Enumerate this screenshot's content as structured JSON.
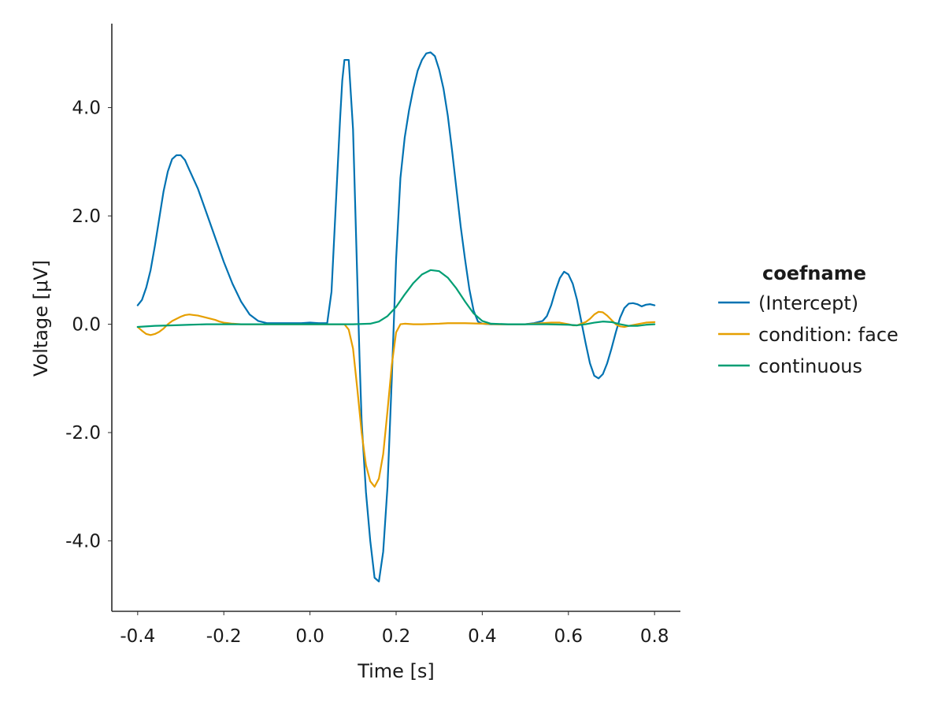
{
  "chart_data": {
    "type": "line",
    "xlabel": "Time [s]",
    "ylabel": "Voltage [μV]",
    "xlim": [
      -0.46,
      0.86
    ],
    "ylim": [
      -5.3,
      5.55
    ],
    "xticks": [
      -0.4,
      -0.2,
      0.0,
      0.2,
      0.4,
      0.6,
      0.8
    ],
    "xtick_labels": [
      "-0.4",
      "-0.2",
      "0.0",
      "0.2",
      "0.4",
      "0.6",
      "0.8"
    ],
    "yticks": [
      -4.0,
      -2.0,
      0.0,
      2.0,
      4.0
    ],
    "ytick_labels": [
      "-4.0",
      "-2.0",
      "0.0",
      "2.0",
      "4.0"
    ],
    "grid": false,
    "legend": {
      "title": "coefname",
      "placement": "right"
    },
    "series": [
      {
        "name": "(Intercept)",
        "color": "#0072B2",
        "points": [
          [
            -0.4,
            0.35
          ],
          [
            -0.39,
            0.45
          ],
          [
            -0.38,
            0.68
          ],
          [
            -0.37,
            1.0
          ],
          [
            -0.36,
            1.45
          ],
          [
            -0.35,
            1.95
          ],
          [
            -0.34,
            2.45
          ],
          [
            -0.33,
            2.82
          ],
          [
            -0.32,
            3.05
          ],
          [
            -0.31,
            3.12
          ],
          [
            -0.3,
            3.12
          ],
          [
            -0.29,
            3.03
          ],
          [
            -0.28,
            2.85
          ],
          [
            -0.26,
            2.5
          ],
          [
            -0.24,
            2.05
          ],
          [
            -0.22,
            1.6
          ],
          [
            -0.2,
            1.15
          ],
          [
            -0.18,
            0.75
          ],
          [
            -0.16,
            0.42
          ],
          [
            -0.14,
            0.18
          ],
          [
            -0.12,
            0.06
          ],
          [
            -0.1,
            0.02
          ],
          [
            -0.06,
            0.02
          ],
          [
            -0.02,
            0.02
          ],
          [
            0.0,
            0.03
          ],
          [
            0.02,
            0.02
          ],
          [
            0.04,
            0.02
          ],
          [
            0.05,
            0.6
          ],
          [
            0.06,
            2.2
          ],
          [
            0.07,
            3.8
          ],
          [
            0.075,
            4.5
          ],
          [
            0.08,
            4.88
          ],
          [
            0.09,
            4.88
          ],
          [
            0.1,
            3.6
          ],
          [
            0.105,
            2.2
          ],
          [
            0.11,
            0.8
          ],
          [
            0.115,
            -0.6
          ],
          [
            0.12,
            -1.8
          ],
          [
            0.13,
            -3.1
          ],
          [
            0.14,
            -4.0
          ],
          [
            0.15,
            -4.68
          ],
          [
            0.16,
            -4.75
          ],
          [
            0.17,
            -4.2
          ],
          [
            0.18,
            -3.0
          ],
          [
            0.19,
            -1.0
          ],
          [
            0.2,
            1.2
          ],
          [
            0.21,
            2.7
          ],
          [
            0.22,
            3.45
          ],
          [
            0.23,
            3.95
          ],
          [
            0.24,
            4.35
          ],
          [
            0.25,
            4.68
          ],
          [
            0.26,
            4.88
          ],
          [
            0.27,
            5.0
          ],
          [
            0.28,
            5.02
          ],
          [
            0.29,
            4.95
          ],
          [
            0.3,
            4.7
          ],
          [
            0.31,
            4.35
          ],
          [
            0.32,
            3.85
          ],
          [
            0.33,
            3.2
          ],
          [
            0.34,
            2.5
          ],
          [
            0.35,
            1.8
          ],
          [
            0.36,
            1.2
          ],
          [
            0.37,
            0.65
          ],
          [
            0.38,
            0.25
          ],
          [
            0.39,
            0.05
          ],
          [
            0.4,
            0.01
          ],
          [
            0.42,
            0.0
          ],
          [
            0.46,
            0.0
          ],
          [
            0.5,
            0.0
          ],
          [
            0.52,
            0.02
          ],
          [
            0.54,
            0.06
          ],
          [
            0.55,
            0.15
          ],
          [
            0.56,
            0.35
          ],
          [
            0.57,
            0.62
          ],
          [
            0.58,
            0.85
          ],
          [
            0.59,
            0.97
          ],
          [
            0.6,
            0.92
          ],
          [
            0.61,
            0.75
          ],
          [
            0.62,
            0.45
          ],
          [
            0.63,
            0.05
          ],
          [
            0.64,
            -0.35
          ],
          [
            0.65,
            -0.72
          ],
          [
            0.66,
            -0.95
          ],
          [
            0.67,
            -1.0
          ],
          [
            0.68,
            -0.92
          ],
          [
            0.69,
            -0.72
          ],
          [
            0.7,
            -0.45
          ],
          [
            0.71,
            -0.15
          ],
          [
            0.72,
            0.12
          ],
          [
            0.73,
            0.3
          ],
          [
            0.74,
            0.38
          ],
          [
            0.75,
            0.39
          ],
          [
            0.76,
            0.37
          ],
          [
            0.77,
            0.33
          ],
          [
            0.78,
            0.36
          ],
          [
            0.79,
            0.37
          ],
          [
            0.8,
            0.35
          ]
        ]
      },
      {
        "name": "condition: face",
        "color": "#E69F00",
        "points": [
          [
            -0.4,
            -0.05
          ],
          [
            -0.39,
            -0.12
          ],
          [
            -0.38,
            -0.18
          ],
          [
            -0.37,
            -0.2
          ],
          [
            -0.36,
            -0.18
          ],
          [
            -0.35,
            -0.14
          ],
          [
            -0.34,
            -0.08
          ],
          [
            -0.33,
            0.0
          ],
          [
            -0.32,
            0.06
          ],
          [
            -0.31,
            0.1
          ],
          [
            -0.3,
            0.14
          ],
          [
            -0.29,
            0.17
          ],
          [
            -0.28,
            0.18
          ],
          [
            -0.27,
            0.17
          ],
          [
            -0.26,
            0.16
          ],
          [
            -0.25,
            0.14
          ],
          [
            -0.24,
            0.12
          ],
          [
            -0.23,
            0.1
          ],
          [
            -0.22,
            0.08
          ],
          [
            -0.21,
            0.05
          ],
          [
            -0.2,
            0.03
          ],
          [
            -0.19,
            0.02
          ],
          [
            -0.18,
            0.01
          ],
          [
            -0.16,
            0.0
          ],
          [
            0.0,
            0.0
          ],
          [
            0.06,
            0.0
          ],
          [
            0.08,
            0.0
          ],
          [
            0.09,
            -0.1
          ],
          [
            0.1,
            -0.45
          ],
          [
            0.11,
            -1.2
          ],
          [
            0.12,
            -2.0
          ],
          [
            0.13,
            -2.6
          ],
          [
            0.14,
            -2.9
          ],
          [
            0.15,
            -3.0
          ],
          [
            0.16,
            -2.85
          ],
          [
            0.17,
            -2.4
          ],
          [
            0.18,
            -1.6
          ],
          [
            0.19,
            -0.75
          ],
          [
            0.2,
            -0.15
          ],
          [
            0.21,
            0.0
          ],
          [
            0.22,
            0.01
          ],
          [
            0.24,
            0.0
          ],
          [
            0.26,
            0.0
          ],
          [
            0.3,
            0.01
          ],
          [
            0.32,
            0.02
          ],
          [
            0.36,
            0.02
          ],
          [
            0.4,
            0.01
          ],
          [
            0.44,
            0.0
          ],
          [
            0.5,
            0.0
          ],
          [
            0.54,
            0.02
          ],
          [
            0.56,
            0.03
          ],
          [
            0.58,
            0.03
          ],
          [
            0.6,
            0.0
          ],
          [
            0.61,
            -0.02
          ],
          [
            0.62,
            -0.02
          ],
          [
            0.64,
            0.04
          ],
          [
            0.65,
            0.1
          ],
          [
            0.66,
            0.18
          ],
          [
            0.67,
            0.23
          ],
          [
            0.68,
            0.22
          ],
          [
            0.69,
            0.16
          ],
          [
            0.7,
            0.08
          ],
          [
            0.71,
            0.0
          ],
          [
            0.72,
            -0.04
          ],
          [
            0.73,
            -0.05
          ],
          [
            0.74,
            -0.03
          ],
          [
            0.76,
            0.0
          ],
          [
            0.78,
            0.03
          ],
          [
            0.8,
            0.04
          ]
        ]
      },
      {
        "name": "continuous",
        "color": "#009E73",
        "points": [
          [
            -0.4,
            -0.05
          ],
          [
            -0.36,
            -0.03
          ],
          [
            -0.32,
            -0.02
          ],
          [
            -0.28,
            -0.01
          ],
          [
            -0.24,
            0.0
          ],
          [
            -0.2,
            0.0
          ],
          [
            -0.1,
            0.0
          ],
          [
            0.0,
            0.0
          ],
          [
            0.1,
            0.0
          ],
          [
            0.14,
            0.01
          ],
          [
            0.16,
            0.05
          ],
          [
            0.18,
            0.15
          ],
          [
            0.2,
            0.32
          ],
          [
            0.22,
            0.55
          ],
          [
            0.24,
            0.76
          ],
          [
            0.26,
            0.92
          ],
          [
            0.28,
            1.0
          ],
          [
            0.3,
            0.98
          ],
          [
            0.32,
            0.86
          ],
          [
            0.34,
            0.66
          ],
          [
            0.36,
            0.42
          ],
          [
            0.38,
            0.2
          ],
          [
            0.4,
            0.06
          ],
          [
            0.42,
            0.01
          ],
          [
            0.46,
            0.0
          ],
          [
            0.5,
            0.0
          ],
          [
            0.55,
            0.0
          ],
          [
            0.6,
            -0.01
          ],
          [
            0.62,
            -0.02
          ],
          [
            0.64,
            0.0
          ],
          [
            0.66,
            0.03
          ],
          [
            0.68,
            0.05
          ],
          [
            0.7,
            0.04
          ],
          [
            0.72,
            0.0
          ],
          [
            0.74,
            -0.03
          ],
          [
            0.76,
            -0.03
          ],
          [
            0.78,
            -0.01
          ],
          [
            0.8,
            0.0
          ]
        ]
      }
    ]
  }
}
